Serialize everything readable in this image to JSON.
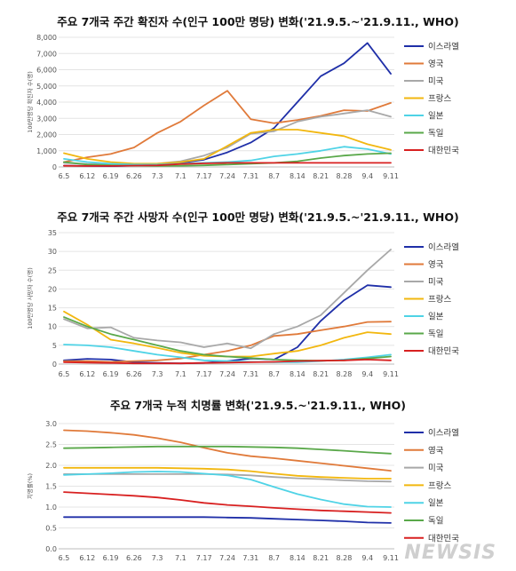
{
  "watermark": "NEWSIS",
  "colors": {
    "이스라엘": "#1f2fa8",
    "영국": "#e07a3a",
    "미국": "#a8a8a8",
    "프랑스": "#f2b70f",
    "일본": "#4fd3e6",
    "독일": "#5aa84a",
    "대한민국": "#d82020"
  },
  "chart_data": [
    {
      "type": "line",
      "title": "주요 7개국 주간 확진자 수(인구 100만 명당) 변화('21.9.5.~'21.9.11., WHO)",
      "ylabel": "100만명당 확진자 수(명)",
      "x": [
        "6.5",
        "6.12",
        "6.19",
        "6.26",
        "7.3",
        "7.1",
        "7.17",
        "7.24",
        "7.31",
        "8.7",
        "8.14",
        "8.21",
        "8.28",
        "9.4",
        "9.11"
      ],
      "ylim": [
        0,
        8000
      ],
      "yticks": [
        "0",
        "1,000",
        "2,000",
        "3,000",
        "4,000",
        "5,000",
        "6,000",
        "7,000",
        "8,000"
      ],
      "legend": "right",
      "series": [
        {
          "name": "이스라엘",
          "values": [
            80,
            60,
            50,
            80,
            120,
            250,
            450,
            900,
            1500,
            2400,
            4000,
            5600,
            6400,
            7650,
            5750
          ]
        },
        {
          "name": "영국",
          "values": [
            300,
            600,
            800,
            1200,
            2100,
            2800,
            3800,
            4700,
            2950,
            2700,
            2900,
            3150,
            3500,
            3450,
            3950
          ]
        },
        {
          "name": "미국",
          "values": [
            250,
            180,
            150,
            150,
            200,
            350,
            700,
            1200,
            2050,
            2200,
            2800,
            3100,
            3300,
            3500,
            3100
          ]
        },
        {
          "name": "프랑스",
          "values": [
            850,
            500,
            300,
            200,
            200,
            300,
            500,
            1300,
            2100,
            2300,
            2300,
            2100,
            1900,
            1400,
            1050
          ]
        },
        {
          "name": "일본",
          "values": [
            500,
            300,
            200,
            150,
            150,
            200,
            250,
            300,
            400,
            650,
            800,
            1000,
            1250,
            1100,
            800
          ]
        },
        {
          "name": "독일",
          "values": [
            300,
            150,
            100,
            80,
            60,
            70,
            100,
            150,
            200,
            250,
            350,
            550,
            700,
            800,
            850
          ]
        },
        {
          "name": "대한민국",
          "values": [
            70,
            60,
            60,
            80,
            100,
            180,
            220,
            250,
            250,
            250,
            250,
            250,
            250,
            250,
            250
          ]
        }
      ]
    },
    {
      "type": "line",
      "title": "주요 7개국 주간 사망자 수(인구 100만 명당) 변화('21.9.5.~'21.9.11., WHO)",
      "ylabel": "100만명당 사망자 수(명)",
      "x": [
        "6.5",
        "6.12",
        "6.19",
        "6.26",
        "7.3",
        "7.1",
        "7.17",
        "7.24",
        "7.31",
        "8.7",
        "8.14",
        "8.21",
        "8.28",
        "9.4",
        "9.11"
      ],
      "ylim": [
        0,
        35
      ],
      "yticks": [
        "0",
        "5",
        "10",
        "15",
        "20",
        "25",
        "30",
        "35"
      ],
      "legend": "right",
      "series": [
        {
          "name": "이스라엘",
          "values": [
            1.0,
            1.4,
            1.2,
            0.5,
            0.3,
            0.2,
            0.3,
            0.8,
            1.5,
            1.2,
            4.5,
            11.5,
            17.0,
            21.0,
            20.5
          ]
        },
        {
          "name": "영국",
          "values": [
            0.8,
            0.8,
            0.6,
            0.8,
            1.0,
            1.5,
            2.5,
            3.5,
            5.0,
            7.5,
            8.0,
            9.0,
            10.0,
            11.2,
            11.3
          ]
        },
        {
          "name": "미국",
          "values": [
            12.0,
            9.5,
            9.8,
            7.0,
            6.3,
            5.8,
            4.5,
            5.5,
            4.2,
            8.0,
            10.0,
            13.0,
            19.0,
            25.0,
            30.5
          ]
        },
        {
          "name": "프랑스",
          "values": [
            14.0,
            10.5,
            6.5,
            5.5,
            4.3,
            3.0,
            2.2,
            2.0,
            2.0,
            2.8,
            3.5,
            5.0,
            7.0,
            8.5,
            8.0
          ]
        },
        {
          "name": "일본",
          "values": [
            5.2,
            5.0,
            4.5,
            3.5,
            2.5,
            1.8,
            1.0,
            0.8,
            0.6,
            0.5,
            0.5,
            0.8,
            1.2,
            1.8,
            2.5
          ]
        },
        {
          "name": "독일",
          "values": [
            12.5,
            10.0,
            8.0,
            6.5,
            5.0,
            3.5,
            2.5,
            2.0,
            1.6,
            1.2,
            1.0,
            0.9,
            1.0,
            1.5,
            2.0
          ]
        },
        {
          "name": "대한민국",
          "values": [
            0.5,
            0.4,
            0.3,
            0.2,
            0.2,
            0.2,
            0.3,
            0.4,
            0.5,
            0.6,
            0.8,
            0.9,
            1.0,
            1.2,
            1.0
          ]
        }
      ]
    },
    {
      "type": "line",
      "title": "주요 7개국 누적 치명률 변화('21.9.5.~'21.9.11., WHO)",
      "ylabel": "치명률(%)",
      "x": [
        "6.5",
        "6.12",
        "6.19",
        "6.26",
        "7.3",
        "7.1",
        "7.17",
        "7.24",
        "7.31",
        "8.7",
        "8.14",
        "8.21",
        "8.28",
        "9.4",
        "9.11"
      ],
      "ylim": [
        0.0,
        3.0
      ],
      "yticks": [
        "0.0",
        "0.5",
        "1.0",
        "1.5",
        "2.0",
        "2.5",
        "3.0"
      ],
      "legend": "right",
      "series": [
        {
          "name": "이스라엘",
          "values": [
            0.76,
            0.76,
            0.76,
            0.76,
            0.76,
            0.76,
            0.76,
            0.75,
            0.74,
            0.72,
            0.7,
            0.68,
            0.66,
            0.63,
            0.62
          ]
        },
        {
          "name": "영국",
          "values": [
            2.84,
            2.82,
            2.78,
            2.73,
            2.65,
            2.55,
            2.42,
            2.3,
            2.22,
            2.17,
            2.11,
            2.05,
            1.99,
            1.93,
            1.87
          ]
        },
        {
          "name": "미국",
          "values": [
            1.79,
            1.79,
            1.79,
            1.79,
            1.79,
            1.79,
            1.79,
            1.78,
            1.76,
            1.72,
            1.69,
            1.67,
            1.64,
            1.62,
            1.61
          ]
        },
        {
          "name": "프랑스",
          "values": [
            1.94,
            1.94,
            1.94,
            1.94,
            1.94,
            1.93,
            1.92,
            1.9,
            1.86,
            1.8,
            1.75,
            1.72,
            1.7,
            1.68,
            1.68
          ]
        },
        {
          "name": "일본",
          "values": [
            1.77,
            1.79,
            1.81,
            1.84,
            1.85,
            1.84,
            1.8,
            1.76,
            1.66,
            1.48,
            1.31,
            1.18,
            1.07,
            1.01,
            1.0
          ]
        },
        {
          "name": "독일",
          "values": [
            2.41,
            2.42,
            2.43,
            2.44,
            2.45,
            2.45,
            2.45,
            2.45,
            2.44,
            2.43,
            2.41,
            2.38,
            2.35,
            2.31,
            2.28
          ]
        },
        {
          "name": "대한민국",
          "values": [
            1.36,
            1.33,
            1.3,
            1.27,
            1.23,
            1.17,
            1.1,
            1.05,
            1.02,
            0.98,
            0.95,
            0.92,
            0.9,
            0.88,
            0.86
          ]
        }
      ]
    }
  ]
}
